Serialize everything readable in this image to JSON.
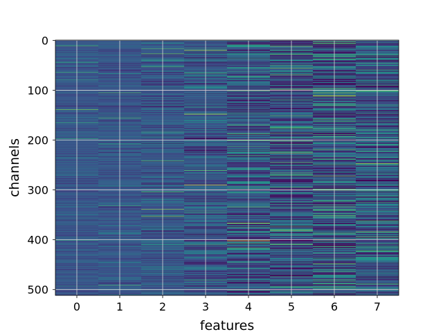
{
  "chart_data": {
    "type": "heatmap",
    "title": "",
    "xlabel": "features",
    "ylabel": "channels",
    "x_categories": [
      "0",
      "1",
      "2",
      "3",
      "4",
      "5",
      "6",
      "7"
    ],
    "y_ticks": [
      0,
      100,
      200,
      300,
      400,
      500
    ],
    "n_channels": 512,
    "xlim": [
      -0.5,
      7.5
    ],
    "ylim": [
      511.5,
      -0.5
    ],
    "grid": true,
    "colormap": "viridis",
    "colormap_stops": [
      "#440154",
      "#3b528b",
      "#21918c",
      "#5ec962",
      "#fde725"
    ],
    "column_variability": [
      0.05,
      0.06,
      0.08,
      0.11,
      0.17,
      0.2,
      0.23,
      0.19
    ],
    "base_level": 0.27,
    "grid_color": "#d9d9d9",
    "frame_color": "#000000"
  }
}
